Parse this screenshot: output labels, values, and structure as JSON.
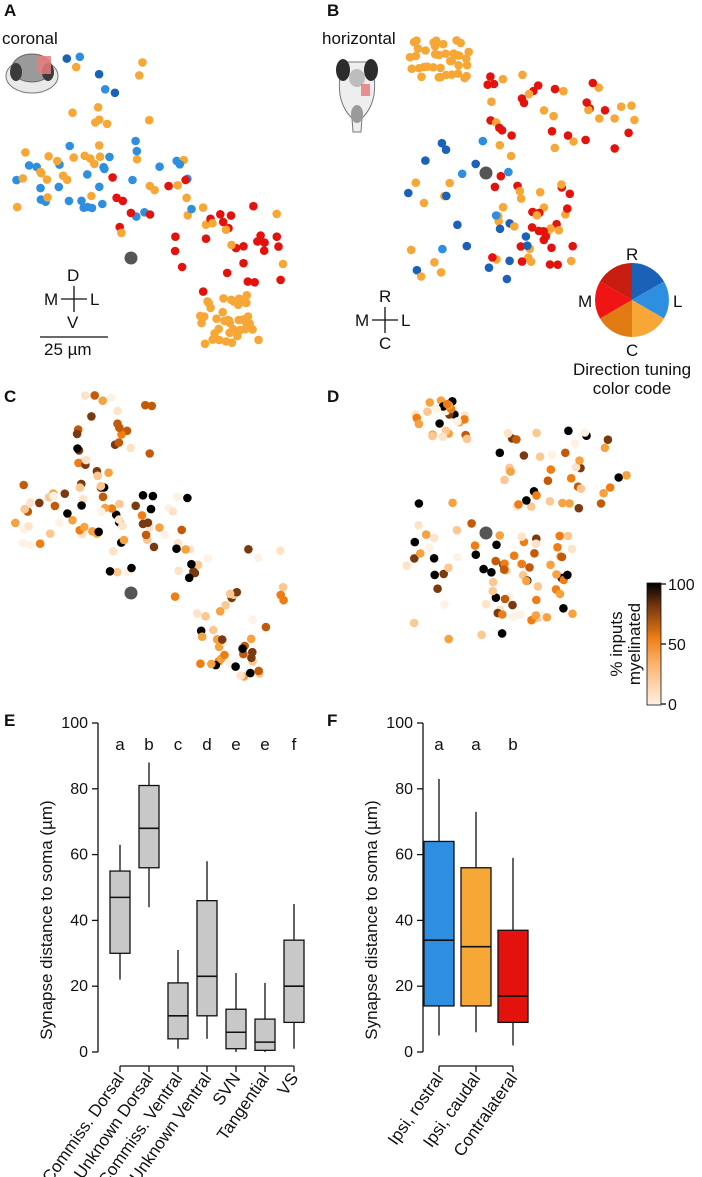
{
  "panels": {
    "A": {
      "letter": "A",
      "view_label": "coronal",
      "compass": {
        "top": "D",
        "left": "M",
        "right": "L",
        "bottom": "V"
      },
      "scale_bar": "25 µm"
    },
    "B": {
      "letter": "B",
      "view_label": "horizontal",
      "compass": {
        "top": "R",
        "left": "M",
        "right": "L",
        "bottom": "C"
      },
      "pie_labels": {
        "top": "R",
        "left": "M",
        "right": "L",
        "bottom": "C"
      },
      "pie_caption": [
        "Direction tuning",
        "color code"
      ]
    },
    "C": {
      "letter": "C"
    },
    "D": {
      "letter": "D",
      "colorbar": {
        "title_line1": "% inputs",
        "title_line2": "myelinated",
        "ticks": [
          "100",
          "50",
          "0"
        ]
      }
    },
    "E": {
      "letter": "E"
    },
    "F": {
      "letter": "F"
    }
  },
  "colors": {
    "rostral": "#2e8fe0",
    "rostral_dark": "#1a62b8",
    "caudal": "#f7a735",
    "contralateral": "#e4120c",
    "soma": "#555555",
    "box_gray": "#c8c8c8"
  },
  "chart_data": [
    {
      "type": "box",
      "panel": "E",
      "ylabel": "Synapse distance to soma (µm)",
      "ylim": [
        0,
        100
      ],
      "yticks": [
        0,
        20,
        40,
        60,
        80,
        100
      ],
      "categories": [
        "Commiss. Dorsal",
        "Unknown Dorsal",
        "Commiss. Ventral",
        "Unknown Ventral",
        "SVN",
        "Tangential",
        "VS"
      ],
      "significance_letters": [
        "a",
        "b",
        "c",
        "d",
        "e",
        "e",
        "f"
      ],
      "boxes": [
        {
          "whisker_low": 22,
          "q1": 30,
          "median": 47,
          "q3": 55,
          "whisker_high": 63
        },
        {
          "whisker_low": 44,
          "q1": 56,
          "median": 68,
          "q3": 81,
          "whisker_high": 88
        },
        {
          "whisker_low": 1,
          "q1": 4,
          "median": 11,
          "q3": 21,
          "whisker_high": 31
        },
        {
          "whisker_low": 4,
          "q1": 11,
          "median": 23,
          "q3": 46,
          "whisker_high": 58
        },
        {
          "whisker_low": 0,
          "q1": 1,
          "median": 6,
          "q3": 13,
          "whisker_high": 24
        },
        {
          "whisker_low": 0,
          "q1": 0.5,
          "median": 3,
          "q3": 10,
          "whisker_high": 21
        },
        {
          "whisker_low": 1,
          "q1": 9,
          "median": 20,
          "q3": 34,
          "whisker_high": 45
        }
      ]
    },
    {
      "type": "box",
      "panel": "F",
      "ylabel": "Synapse distance to soma (µm)",
      "ylim": [
        0,
        100
      ],
      "yticks": [
        0,
        20,
        40,
        60,
        80,
        100
      ],
      "categories": [
        "Ipsi, rostral",
        "Ipsi, caudal",
        "Contralateral"
      ],
      "significance_letters": [
        "a",
        "a",
        "b"
      ],
      "box_colors": [
        "#2e8fe0",
        "#f7a735",
        "#e4120c"
      ],
      "boxes": [
        {
          "whisker_low": 5,
          "q1": 14,
          "median": 34,
          "q3": 64,
          "whisker_high": 83
        },
        {
          "whisker_low": 6,
          "q1": 14,
          "median": 32,
          "q3": 56,
          "whisker_high": 73
        },
        {
          "whisker_low": 2,
          "q1": 9,
          "median": 17,
          "q3": 37,
          "whisker_high": 59
        }
      ]
    }
  ]
}
